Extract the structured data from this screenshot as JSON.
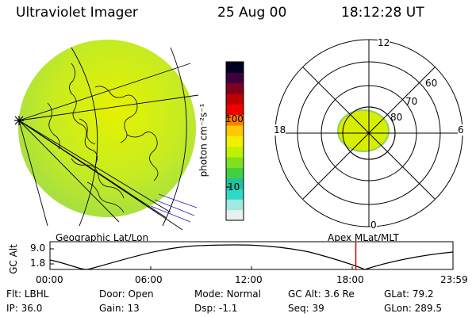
{
  "header": {
    "instrument": "Ultraviolet Imager",
    "date": "25 Aug 00",
    "time": "18:12:28 UT"
  },
  "colorbar": {
    "label": "photon cm⁻²s⁻¹",
    "ticks": [
      "100",
      "10"
    ],
    "colors": [
      "#e8f0f0",
      "#a0e8e0",
      "#30d8c8",
      "#20c0a0",
      "#40d040",
      "#80e020",
      "#c0f000",
      "#f0f000",
      "#ffc800",
      "#ff8000",
      "#f00000",
      "#c00000",
      "#800020",
      "#400040",
      "#000020"
    ]
  },
  "panels": {
    "left_label": "Geographic Lat/Lon",
    "right_label": "Apex MLat/MLT"
  },
  "polar": {
    "mlt_labels": {
      "top": "12",
      "left": "18",
      "right": "6",
      "bottom": "0"
    },
    "lat_labels": [
      "60",
      "70",
      "80"
    ]
  },
  "altitude_plot": {
    "ylabel": "GC Alt",
    "yticks": [
      "9.0",
      "1.8"
    ],
    "xticks": [
      "00:00",
      "06:00",
      "12:00",
      "18:00",
      "23:59"
    ],
    "marker_time": "18:12",
    "marker_color": "#e00000"
  },
  "info_rows": [
    [
      {
        "label": "Flt:",
        "value": "LBHL"
      },
      {
        "label": "Door:",
        "value": "Open"
      },
      {
        "label": "Mode:",
        "value": "Normal"
      },
      {
        "label": "GC Alt:",
        "value": "3.6 Re"
      },
      {
        "label": "GLat:",
        "value": "79.2"
      }
    ],
    [
      {
        "label": "IP:",
        "value": "36.0"
      },
      {
        "label": "Gain:",
        "value": "13"
      },
      {
        "label": "Dsp:",
        "value": "-1.1"
      },
      {
        "label": "Seq:",
        "value": "39"
      },
      {
        "label": "GLon:",
        "value": "289.5"
      }
    ]
  ]
}
